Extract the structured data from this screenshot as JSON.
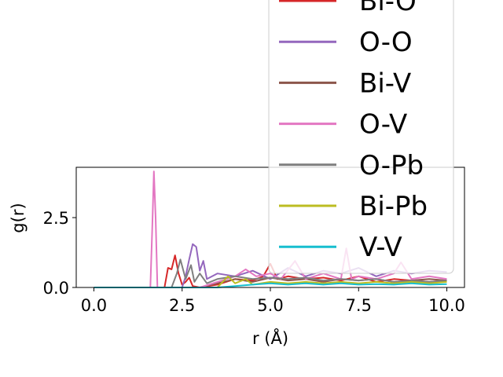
{
  "chart_data": {
    "type": "line",
    "xlabel": "r (Å)",
    "ylabel": "g(r)",
    "xlim": [
      -0.5,
      10.5
    ],
    "ylim": [
      0,
      4.3
    ],
    "xticks": [
      "0.0",
      "2.5",
      "5.0",
      "7.5",
      "10.0"
    ],
    "yticks": [
      "0.0",
      "2.5"
    ],
    "grid": false,
    "legend_position": "upper-right (overflowing above axes)",
    "series": [
      {
        "name": "Bi-O",
        "color": "#d62728",
        "x": [
          0,
          2.0,
          2.1,
          2.2,
          2.3,
          2.4,
          2.5,
          2.6,
          2.7,
          2.8,
          3.0,
          3.5,
          4.0,
          4.5,
          4.8,
          5.0,
          5.2,
          5.5,
          6.0,
          6.5,
          7.0,
          7.5,
          8.0,
          8.5,
          9.0,
          9.5,
          10.0
        ],
        "y": [
          0,
          0,
          0.7,
          0.65,
          1.15,
          0.5,
          0.1,
          0.2,
          0.35,
          0.05,
          0,
          0.1,
          0.3,
          0.25,
          0.4,
          0.85,
          0.3,
          0.4,
          0.3,
          0.35,
          0.25,
          0.4,
          0.2,
          0.3,
          0.25,
          0.2,
          0.25
        ]
      },
      {
        "name": "O-O",
        "color": "#9467bd",
        "x": [
          0,
          2.5,
          2.6,
          2.7,
          2.8,
          2.9,
          3.0,
          3.1,
          3.2,
          3.5,
          4.0,
          4.5,
          5.0,
          5.5,
          6.0,
          6.5,
          7.0,
          7.5,
          8.0,
          8.5,
          9.0,
          9.5,
          10.0
        ],
        "y": [
          0,
          0,
          0.4,
          1.0,
          1.55,
          1.45,
          0.6,
          0.95,
          0.3,
          0.5,
          0.4,
          0.6,
          0.3,
          0.7,
          0.4,
          0.6,
          0.5,
          0.7,
          0.4,
          0.6,
          0.5,
          0.6,
          0.55
        ]
      },
      {
        "name": "Bi-V",
        "color": "#8c564b",
        "x": [
          0,
          3.0,
          3.5,
          4.0,
          4.5,
          5.0,
          5.5,
          6.0,
          6.5,
          7.0,
          7.5,
          8.0,
          8.5,
          9.0,
          9.5,
          10.0
        ],
        "y": [
          0,
          0,
          0.15,
          0.3,
          0.2,
          0.35,
          0.25,
          0.3,
          0.2,
          0.3,
          0.25,
          0.3,
          0.2,
          0.25,
          0.3,
          0.25
        ]
      },
      {
        "name": "O-V",
        "color": "#e377c2",
        "x": [
          0,
          1.6,
          1.65,
          1.7,
          1.75,
          1.8,
          1.9,
          2.5,
          3.0,
          4.0,
          4.3,
          4.6,
          5.0,
          5.3,
          5.7,
          6.0,
          6.5,
          7.0,
          7.15,
          7.3,
          7.5,
          8.0,
          8.5,
          8.7,
          9.0,
          9.5,
          10.0
        ],
        "y": [
          0,
          0,
          2.0,
          4.15,
          2.5,
          0,
          0,
          0,
          0,
          0.4,
          0.65,
          0.4,
          0.5,
          0.3,
          0.95,
          0.3,
          0.5,
          0.3,
          1.4,
          0.3,
          0.4,
          0.3,
          0.5,
          0.9,
          0.3,
          0.4,
          0.3
        ]
      },
      {
        "name": "O-Pb",
        "color": "#7f7f7f",
        "x": [
          0,
          2.2,
          2.35,
          2.45,
          2.6,
          2.75,
          2.85,
          3.0,
          3.2,
          3.5,
          4.0,
          4.5,
          5.0,
          5.5,
          6.0,
          6.5,
          7.0,
          7.5,
          8.0,
          8.5,
          9.0,
          9.5,
          10.0
        ],
        "y": [
          0,
          0,
          0.5,
          1.0,
          0.3,
          0.8,
          0.2,
          0.5,
          0.15,
          0.3,
          0.4,
          0.3,
          0.35,
          0.3,
          0.35,
          0.25,
          0.3,
          0.25,
          0.3,
          0.2,
          0.25,
          0.2,
          0.25
        ]
      },
      {
        "name": "Bi-Pb",
        "color": "#bcbd22",
        "x": [
          0,
          3.5,
          3.8,
          4.0,
          4.3,
          4.5,
          5.0,
          5.5,
          6.0,
          6.5,
          7.0,
          7.5,
          8.0,
          8.5,
          9.0,
          9.5,
          10.0
        ],
        "y": [
          0,
          0,
          0.4,
          0.15,
          0.3,
          0.1,
          0.2,
          0.15,
          0.2,
          0.15,
          0.2,
          0.15,
          0.2,
          0.15,
          0.2,
          0.15,
          0.2
        ]
      },
      {
        "name": "V-V",
        "color": "#17becf",
        "x": [
          0,
          3.5,
          4.0,
          4.5,
          5.0,
          5.5,
          6.0,
          6.5,
          7.0,
          7.5,
          8.0,
          8.5,
          9.0,
          9.5,
          10.0
        ],
        "y": [
          0,
          0,
          0.05,
          0.1,
          0.15,
          0.1,
          0.15,
          0.1,
          0.15,
          0.1,
          0.12,
          0.1,
          0.15,
          0.1,
          0.12
        ]
      }
    ]
  }
}
